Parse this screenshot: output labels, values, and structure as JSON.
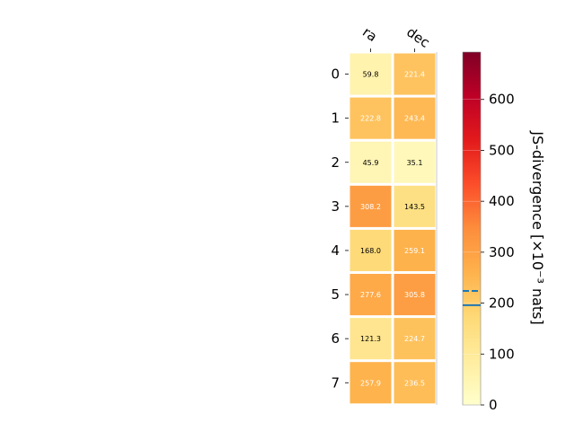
{
  "chart_data": {
    "type": "heatmap",
    "columns": [
      "ra",
      "dec"
    ],
    "rows": [
      "0",
      "1",
      "2",
      "3",
      "4",
      "5",
      "6",
      "7"
    ],
    "values": [
      [
        59.8,
        221.4
      ],
      [
        222.8,
        243.4
      ],
      [
        45.9,
        35.1
      ],
      [
        308.2,
        143.5
      ],
      [
        168.0,
        259.1
      ],
      [
        277.6,
        305.8
      ],
      [
        121.3,
        224.7
      ],
      [
        257.9,
        236.5
      ]
    ],
    "value_labels": [
      [
        "59.8",
        "221.4"
      ],
      [
        "222.8",
        "243.4"
      ],
      [
        "45.9",
        "35.1"
      ],
      [
        "308.2",
        "143.5"
      ],
      [
        "168.0",
        "259.1"
      ],
      [
        "277.6",
        "305.8"
      ],
      [
        "121.3",
        "224.7"
      ],
      [
        "257.9",
        "236.5"
      ]
    ],
    "colorbar": {
      "label": "JS-divergence [×10⁻³ nats]",
      "range": [
        0,
        693
      ],
      "ticks": [
        0,
        100,
        200,
        300,
        400,
        500,
        600
      ],
      "colormap": "YlOrRd",
      "markers": [
        {
          "value": 196,
          "style": "solid",
          "color": "#1f77b4"
        },
        {
          "value": 224,
          "style": "dashed",
          "color": "#1f77b4"
        }
      ]
    }
  }
}
